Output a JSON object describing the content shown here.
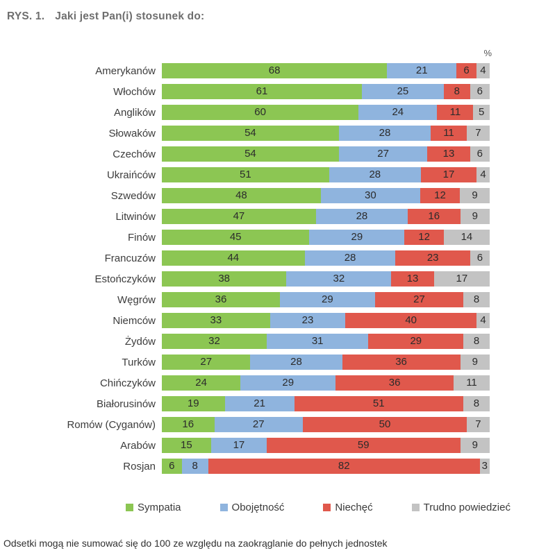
{
  "title": {
    "prefix": "RYS. 1.",
    "text": "Jaki jest Pan(i) stosunek do:"
  },
  "unit_label": "%",
  "footnote": "Odsetki mogą nie sumować się do 100 ze względu na zaokrąglanie do pełnych jednostek",
  "colors": {
    "sympatia": "#8CC653",
    "obojetnosc": "#8FB4DE",
    "niechec": "#E0584C",
    "trudno_powiedziec": "#C3C3C3"
  },
  "chart_data": {
    "type": "bar",
    "orientation": "horizontal",
    "stacked": true,
    "unit": "%",
    "title": "RYS. 1. Jaki jest Pan(i) stosunek do:",
    "legend_position": "bottom",
    "value_labels": "inside",
    "grid": false,
    "xlim": [
      0,
      100
    ],
    "categories": [
      "Amerykanów",
      "Włochów",
      "Anglików",
      "Słowaków",
      "Czechów",
      "Ukraińców",
      "Szwedów",
      "Litwinów",
      "Finów",
      "Francuzów",
      "Estończyków",
      "Węgrów",
      "Niemców",
      "Żydów",
      "Turków",
      "Chińczyków",
      "Białorusinów",
      "Romów (Cyganów)",
      "Arabów",
      "Rosjan"
    ],
    "series": [
      {
        "name": "Sympatia",
        "key": "sympatia",
        "color": "#8CC653",
        "values": [
          68,
          61,
          60,
          54,
          54,
          51,
          48,
          47,
          45,
          44,
          38,
          36,
          33,
          32,
          27,
          24,
          19,
          16,
          15,
          6
        ]
      },
      {
        "name": "Obojętność",
        "key": "obojetnosc",
        "color": "#8FB4DE",
        "values": [
          21,
          25,
          24,
          28,
          27,
          28,
          30,
          28,
          29,
          28,
          32,
          29,
          23,
          31,
          28,
          29,
          21,
          27,
          17,
          8
        ]
      },
      {
        "name": "Niechęć",
        "key": "niechec",
        "color": "#E0584C",
        "values": [
          6,
          8,
          11,
          11,
          13,
          17,
          12,
          16,
          12,
          23,
          13,
          27,
          40,
          29,
          36,
          36,
          51,
          50,
          59,
          82
        ]
      },
      {
        "name": "Trudno powiedzieć",
        "key": "trudno_powiedziec",
        "color": "#C3C3C3",
        "values": [
          4,
          6,
          5,
          7,
          6,
          4,
          9,
          9,
          14,
          6,
          17,
          8,
          4,
          8,
          9,
          11,
          8,
          7,
          9,
          3
        ]
      }
    ]
  }
}
